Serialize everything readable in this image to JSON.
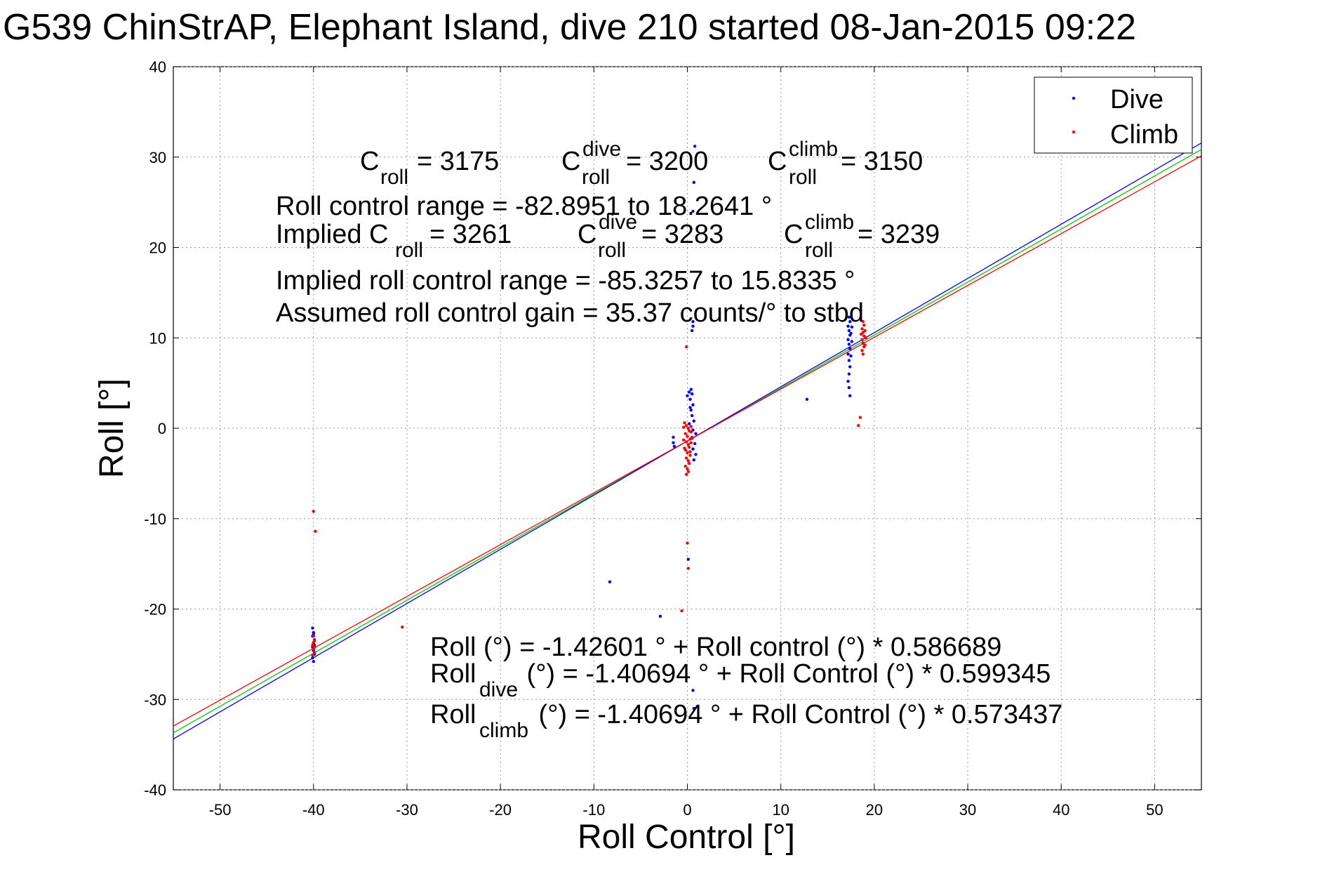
{
  "chart_data": {
    "type": "scatter",
    "title": "G539 ChinStrAP, Elephant Island, dive 210 started 08-Jan-2015 09:22",
    "xlabel": "Roll Control [°]",
    "ylabel": "Roll [°]",
    "xlim": [
      -55,
      55
    ],
    "ylim": [
      -40,
      40
    ],
    "xticks": [
      -50,
      -40,
      -30,
      -20,
      -10,
      0,
      10,
      20,
      30,
      40,
      50
    ],
    "yticks": [
      -40,
      -30,
      -20,
      -10,
      0,
      10,
      20,
      30,
      40
    ],
    "grid": true,
    "legend": {
      "location": "top-right",
      "entries": [
        "Dive",
        "Climb"
      ]
    },
    "colors": {
      "dive": "#0000ff",
      "climb": "#ff0000",
      "fit_all": "#00cc00",
      "fit_dive": "#0000ff",
      "fit_climb": "#ff0000"
    },
    "series": [
      {
        "name": "Dive",
        "marker": "dot",
        "points": [
          [
            -40.1,
            -22.1
          ],
          [
            -40.0,
            -22.6
          ],
          [
            -40.1,
            -23.0
          ],
          [
            -39.9,
            -23.4
          ],
          [
            -40.0,
            -23.8
          ],
          [
            -40.1,
            -24.2
          ],
          [
            -40.0,
            -24.6
          ],
          [
            -39.9,
            -25.0
          ],
          [
            -40.1,
            -25.4
          ],
          [
            -40.0,
            -25.8
          ],
          [
            -39.9,
            -24.0
          ],
          [
            -40.0,
            -22.8
          ],
          [
            -8.3,
            -17.0
          ],
          [
            -2.9,
            -20.8
          ],
          [
            -1.5,
            -1.0
          ],
          [
            -1.5,
            -1.6
          ],
          [
            -1.4,
            -2.0
          ],
          [
            0.4,
            4.3
          ],
          [
            0.5,
            3.8
          ],
          [
            0.3,
            3.2
          ],
          [
            0.6,
            2.6
          ],
          [
            0.4,
            2.0
          ],
          [
            0.5,
            1.4
          ],
          [
            0.7,
            0.8
          ],
          [
            0.2,
            0.5
          ],
          [
            0.6,
            -0.2
          ],
          [
            0.9,
            -0.6
          ],
          [
            0.5,
            -1.1
          ],
          [
            0.8,
            -1.7
          ],
          [
            0.6,
            -2.3
          ],
          [
            0.9,
            -2.9
          ],
          [
            0.7,
            -3.5
          ],
          [
            0.8,
            31.2
          ],
          [
            0.7,
            27.2
          ],
          [
            0.6,
            24.0
          ],
          [
            0.6,
            11.8
          ],
          [
            0.5,
            10.8
          ],
          [
            0.6,
            11.3
          ],
          [
            0.1,
            -14.5
          ],
          [
            0.6,
            -29.0
          ],
          [
            0.7,
            -31.0
          ],
          [
            0.0,
            3.6
          ],
          [
            0.2,
            4.0
          ],
          [
            0.3,
            2.3
          ],
          [
            12.8,
            3.2
          ],
          [
            17.3,
            12.3
          ],
          [
            17.4,
            11.8
          ],
          [
            17.2,
            11.3
          ],
          [
            17.3,
            10.8
          ],
          [
            17.4,
            10.3
          ],
          [
            17.2,
            9.8
          ],
          [
            17.3,
            9.3
          ],
          [
            17.4,
            8.8
          ],
          [
            17.2,
            8.2
          ],
          [
            17.3,
            7.5
          ],
          [
            17.4,
            6.8
          ],
          [
            17.3,
            6.0
          ],
          [
            17.2,
            5.2
          ],
          [
            17.3,
            4.5
          ],
          [
            17.4,
            3.6
          ],
          [
            17.6,
            9.6
          ],
          [
            17.5,
            10.5
          ],
          [
            17.6,
            11.2
          ],
          [
            17.5,
            8.0
          ]
        ]
      },
      {
        "name": "Climb",
        "marker": "dot",
        "points": [
          [
            -40.0,
            -9.2
          ],
          [
            -39.8,
            -11.4
          ],
          [
            -30.5,
            -22.0
          ],
          [
            -40.0,
            -23.0
          ],
          [
            -39.9,
            -23.5
          ],
          [
            -40.1,
            -24.0
          ],
          [
            -40.0,
            -24.4
          ],
          [
            -39.9,
            -24.8
          ],
          [
            -40.1,
            -25.1
          ],
          [
            -40.0,
            -23.7
          ],
          [
            -39.9,
            -24.2
          ],
          [
            -0.6,
            -20.2
          ],
          [
            -0.1,
            9.0
          ],
          [
            0.0,
            -12.7
          ],
          [
            0.1,
            -15.5
          ],
          [
            -0.3,
            0.6
          ],
          [
            -0.1,
            0.3
          ],
          [
            0.1,
            0.0
          ],
          [
            0.2,
            -0.3
          ],
          [
            -0.2,
            -0.6
          ],
          [
            0.0,
            -0.9
          ],
          [
            0.3,
            -1.2
          ],
          [
            -0.1,
            -1.5
          ],
          [
            0.1,
            -1.8
          ],
          [
            0.2,
            -2.1
          ],
          [
            -0.2,
            -2.4
          ],
          [
            0.0,
            -2.7
          ],
          [
            0.3,
            -3.0
          ],
          [
            -0.1,
            -3.3
          ],
          [
            0.1,
            -3.6
          ],
          [
            0.2,
            -3.9
          ],
          [
            -0.2,
            -4.2
          ],
          [
            0.0,
            -4.5
          ],
          [
            0.1,
            -4.8
          ],
          [
            -0.1,
            -5.1
          ],
          [
            0.4,
            -0.4
          ],
          [
            0.5,
            -1.0
          ],
          [
            0.4,
            -1.6
          ],
          [
            -0.4,
            -1.3
          ],
          [
            -0.3,
            -2.2
          ],
          [
            0.4,
            0.2
          ],
          [
            -0.4,
            0.1
          ],
          [
            0.3,
            -2.6
          ],
          [
            18.5,
            1.2
          ],
          [
            18.3,
            0.3
          ],
          [
            18.8,
            11.8
          ],
          [
            18.9,
            11.4
          ],
          [
            18.7,
            11.0
          ],
          [
            18.8,
            10.6
          ],
          [
            18.9,
            10.2
          ],
          [
            18.7,
            9.8
          ],
          [
            18.8,
            9.4
          ],
          [
            18.9,
            9.0
          ],
          [
            18.7,
            8.6
          ],
          [
            18.8,
            8.2
          ],
          [
            19.0,
            10.8
          ],
          [
            19.1,
            10.0
          ],
          [
            18.6,
            10.4
          ],
          [
            19.0,
            9.2
          ]
        ]
      }
    ],
    "fit_lines": [
      {
        "name": "fit-all",
        "intercept": -1.42601,
        "slope": 0.586689,
        "color": "#00cc00"
      },
      {
        "name": "fit-dive",
        "intercept": -1.40694,
        "slope": 0.599345,
        "color": "#0000ff"
      },
      {
        "name": "fit-climb",
        "intercept": -1.40694,
        "slope": 0.573437,
        "color": "#ff0000"
      }
    ],
    "annotations": {
      "c_roll": "3175",
      "c_roll_dive": "3200",
      "c_roll_climb": "3150",
      "roll_control_range": "Roll control range = -82.8951 to 18.2641 °",
      "implied_c_roll": "3261",
      "implied_c_roll_dive": "3283",
      "implied_c_roll_climb": "3239",
      "implied_roll_control_range": "Implied roll control range = -85.3257 to 15.8335 °",
      "assumed_gain": "Assumed roll control gain = 35.37 counts/° to stbd",
      "eq_all": "Roll (°) = -1.42601 ° + Roll control (°) * 0.586689",
      "eq_dive_rest": " (°) = -1.40694 ° + Roll Control (°) * 0.599345",
      "eq_climb_rest": " (°) = -1.40694 ° + Roll Control (°) * 0.573437",
      "sym_c": "C",
      "sym_roll": "Roll",
      "sub_roll": "roll",
      "sup_dive": "dive",
      "sup_climb": "climb",
      "equals": " = ",
      "implied_prefix": "Implied C"
    }
  }
}
